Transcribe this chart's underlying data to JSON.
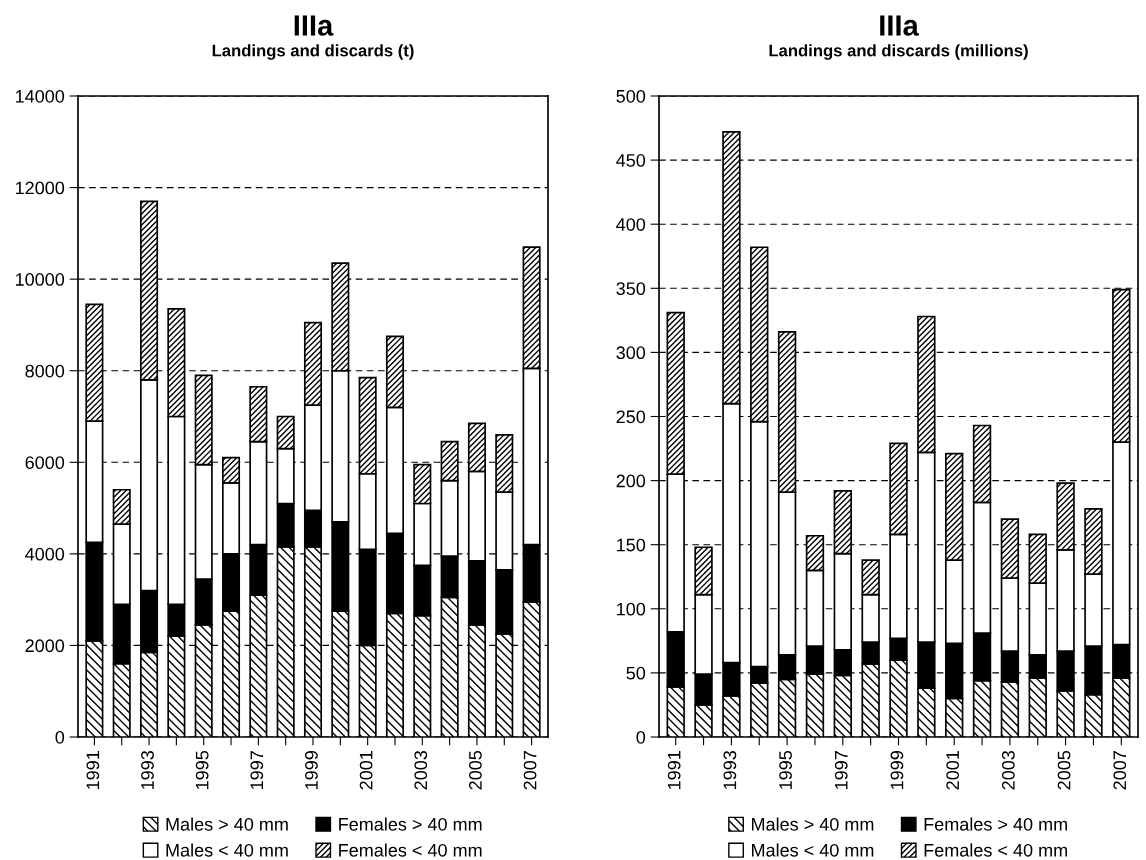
{
  "chart_data": [
    {
      "type": "bar",
      "stacked": true,
      "title": "IIIa",
      "subtitle": "Landings and discards (t)",
      "categories": [
        "1991",
        null,
        "1993",
        null,
        "1995",
        null,
        "1997",
        null,
        "1999",
        null,
        "2001",
        null,
        "2003",
        null,
        "2005",
        null,
        "2007"
      ],
      "ylim": [
        0,
        14000
      ],
      "yticks": [
        0,
        2000,
        4000,
        6000,
        8000,
        10000,
        12000,
        14000
      ],
      "grid": "y",
      "legend": "bottom",
      "series": [
        {
          "name": "Males > 40 mm",
          "color": "#000000",
          "values": [
            2100,
            1600,
            1850,
            2200,
            2450,
            2750,
            3100,
            4150,
            4150,
            2750,
            2000,
            2700,
            2650,
            3050,
            2450,
            2250,
            2950
          ]
        },
        {
          "name": "Females > 40 mm",
          "color": "#000000",
          "values": [
            2150,
            1300,
            1350,
            700,
            1000,
            1250,
            1100,
            950,
            800,
            1950,
            2100,
            1750,
            1100,
            900,
            1400,
            1400,
            1250
          ]
        },
        {
          "name": "Males < 40 mm",
          "color": "#ffffff",
          "values": [
            2650,
            1750,
            4600,
            4100,
            2500,
            1550,
            2250,
            1200,
            2300,
            3300,
            1650,
            2750,
            1350,
            1650,
            1950,
            1700,
            3850
          ]
        },
        {
          "name": "Females < 40 mm",
          "color": "#000000",
          "values": [
            2550,
            750,
            3900,
            2350,
            1950,
            550,
            1200,
            700,
            1800,
            2350,
            2100,
            1550,
            850,
            850,
            1050,
            1250,
            2650
          ]
        }
      ]
    },
    {
      "type": "bar",
      "stacked": true,
      "title": "IIIa",
      "subtitle": "Landings and discards (millions)",
      "categories": [
        "1991",
        null,
        "1993",
        null,
        "1995",
        null,
        "1997",
        null,
        "1999",
        null,
        "2001",
        null,
        "2003",
        null,
        "2005",
        null,
        "2007"
      ],
      "ylim": [
        0,
        500
      ],
      "yticks": [
        0,
        50,
        100,
        150,
        200,
        250,
        300,
        350,
        400,
        450,
        500
      ],
      "grid": "y",
      "legend": "bottom",
      "series": [
        {
          "name": "Males > 40 mm",
          "color": "#000000",
          "values": [
            39,
            25,
            32,
            42,
            45,
            49,
            48,
            57,
            60,
            38,
            30,
            44,
            43,
            46,
            36,
            33,
            46
          ]
        },
        {
          "name": "Females > 40 mm",
          "color": "#000000",
          "values": [
            43,
            24,
            26,
            13,
            19,
            22,
            20,
            17,
            17,
            36,
            43,
            37,
            24,
            18,
            31,
            38,
            26
          ]
        },
        {
          "name": "Males < 40 mm",
          "color": "#ffffff",
          "values": [
            123,
            62,
            202,
            191,
            127,
            59,
            75,
            37,
            81,
            148,
            65,
            102,
            57,
            56,
            79,
            56,
            158
          ]
        },
        {
          "name": "Females < 40 mm",
          "color": "#000000",
          "values": [
            126,
            37,
            212,
            136,
            125,
            27,
            49,
            27,
            71,
            106,
            83,
            60,
            46,
            38,
            52,
            51,
            119
          ]
        }
      ]
    }
  ]
}
